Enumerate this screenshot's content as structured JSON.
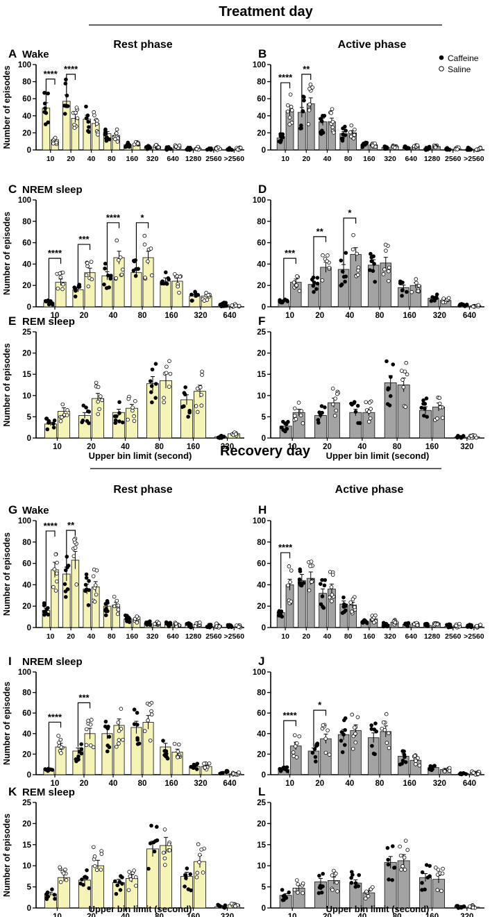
{
  "headings": {
    "treatment_day": "Treatment day",
    "recovery_day": "Recovery day",
    "rest_phase": "Rest phase",
    "active_phase": "Active phase"
  },
  "legend": {
    "caffeine": "Caffeine",
    "saline": "Saline",
    "placement": "top-right"
  },
  "colors": {
    "rest_bar": "#f6f3b6",
    "active_bar": "#a3a3a3",
    "caffeine_dot": "#000000",
    "saline_dot": "#ffffff"
  },
  "chart_data": [
    {
      "id": "A",
      "type": "bar",
      "title": "Wake",
      "day": "Treatment day",
      "phase": "Rest phase",
      "ylabel": "Number of episodes",
      "xlabel": "",
      "ylim": [
        0,
        100
      ],
      "yticks": [
        0,
        20,
        40,
        60,
        80,
        100
      ],
      "categories": [
        "10",
        "20",
        "40",
        "80",
        "160",
        "320",
        "640",
        "1280",
        "2560",
        ">2560"
      ],
      "series": [
        {
          "name": "Caffeine",
          "values": [
            49,
            57,
            36,
            19,
            6,
            3,
            2,
            1,
            1,
            0.5
          ]
        },
        {
          "name": "Saline",
          "values": [
            12,
            37,
            31,
            17,
            7,
            4,
            4,
            2,
            2,
            1
          ]
        }
      ],
      "significance": [
        {
          "category": "10",
          "label": "****"
        },
        {
          "category": "20",
          "label": "****"
        }
      ]
    },
    {
      "id": "B",
      "type": "bar",
      "title": "",
      "day": "Treatment day",
      "phase": "Active phase",
      "ylabel": "",
      "xlabel": "",
      "ylim": [
        0,
        100
      ],
      "yticks": [
        0,
        20,
        40,
        60,
        80,
        100
      ],
      "categories": [
        "10",
        "20",
        "40",
        "80",
        "160",
        "320",
        "640",
        "1280",
        "2560",
        ">2560"
      ],
      "series": [
        {
          "name": "Caffeine",
          "values": [
            14,
            44,
            33,
            19,
            6,
            3,
            3,
            2,
            1,
            1
          ]
        },
        {
          "name": "Saline",
          "values": [
            46,
            54,
            33,
            20,
            6,
            4,
            4,
            4,
            1,
            1
          ]
        }
      ],
      "significance": [
        {
          "category": "10",
          "label": "****"
        },
        {
          "category": "20",
          "label": "**"
        }
      ]
    },
    {
      "id": "C",
      "type": "bar",
      "title": "NREM sleep",
      "day": "Treatment day",
      "phase": "Rest phase",
      "ylabel": "Number of episodes",
      "xlabel": "",
      "ylim": [
        0,
        100
      ],
      "yticks": [
        0,
        20,
        40,
        60,
        80,
        100
      ],
      "categories": [
        "10",
        "20",
        "40",
        "80",
        "160",
        "320",
        "640"
      ],
      "series": [
        {
          "name": "Caffeine",
          "values": [
            4,
            16,
            29,
            32,
            24,
            10,
            2
          ]
        },
        {
          "name": "Saline",
          "values": [
            23,
            32,
            46,
            46,
            24,
            10,
            1
          ]
        }
      ],
      "significance": [
        {
          "category": "10",
          "label": "****"
        },
        {
          "category": "20",
          "label": "***"
        },
        {
          "category": "40",
          "label": "****"
        },
        {
          "category": "80",
          "label": "*"
        }
      ]
    },
    {
      "id": "D",
      "type": "bar",
      "title": "",
      "day": "Treatment day",
      "phase": "Active phase",
      "ylabel": "",
      "xlabel": "",
      "ylim": [
        0,
        100
      ],
      "yticks": [
        0,
        20,
        40,
        60,
        80,
        100
      ],
      "categories": [
        "10",
        "20",
        "40",
        "80",
        "160",
        "320",
        "640"
      ],
      "series": [
        {
          "name": "Caffeine",
          "values": [
            5,
            21,
            35,
            39,
            18,
            8,
            1
          ]
        },
        {
          "name": "Saline",
          "values": [
            23,
            37,
            49,
            41,
            20,
            6,
            1
          ]
        }
      ],
      "significance": [
        {
          "category": "10",
          "label": "***"
        },
        {
          "category": "20",
          "label": "**"
        },
        {
          "category": "40",
          "label": "*"
        }
      ]
    },
    {
      "id": "E",
      "type": "bar",
      "title": "REM sleep",
      "day": "Treatment day",
      "phase": "Rest phase",
      "ylabel": "Number of episodes",
      "xlabel": "Upper bin limit (second)",
      "ylim": [
        0,
        25
      ],
      "yticks": [
        0,
        5,
        10,
        15,
        20,
        25
      ],
      "categories": [
        "10",
        "20",
        "40",
        "80",
        "160",
        "320"
      ],
      "series": [
        {
          "name": "Caffeine",
          "values": [
            3.3,
            5.3,
            6,
            12.8,
            9,
            0.3
          ]
        },
        {
          "name": "Saline",
          "values": [
            6.3,
            9.3,
            7,
            13.5,
            11,
            1
          ]
        }
      ],
      "significance": []
    },
    {
      "id": "F",
      "type": "bar",
      "title": "",
      "day": "Treatment day",
      "phase": "Active phase",
      "ylabel": "",
      "xlabel": "Upper bin limit (second)",
      "ylim": [
        0,
        25
      ],
      "yticks": [
        0,
        5,
        10,
        15,
        20,
        25
      ],
      "categories": [
        "10",
        "20",
        "40",
        "80",
        "160",
        "320"
      ],
      "series": [
        {
          "name": "Caffeine",
          "values": [
            2.8,
            5.3,
            6,
            13,
            6.5,
            0.2
          ]
        },
        {
          "name": "Saline",
          "values": [
            6,
            8.3,
            6,
            12.5,
            7.3,
            0.3
          ]
        }
      ],
      "significance": []
    },
    {
      "id": "G",
      "type": "bar",
      "title": "Wake",
      "day": "Recovery day",
      "phase": "Rest phase",
      "ylabel": "Number of episodes",
      "xlabel": "",
      "ylim": [
        0,
        100
      ],
      "yticks": [
        0,
        20,
        40,
        60,
        80,
        100
      ],
      "categories": [
        "10",
        "20",
        "40",
        "80",
        "160",
        "320",
        "640",
        "1280",
        "2560",
        ">2560"
      ],
      "series": [
        {
          "name": "Caffeine",
          "values": [
            16,
            50,
            36,
            20,
            8,
            4,
            3,
            2,
            1,
            0.5
          ]
        },
        {
          "name": "Saline",
          "values": [
            54,
            63,
            38,
            21,
            8,
            4,
            3,
            3,
            2,
            1
          ]
        }
      ],
      "significance": [
        {
          "category": "10",
          "label": "****"
        },
        {
          "category": "20",
          "label": "**"
        }
      ]
    },
    {
      "id": "H",
      "type": "bar",
      "title": "",
      "day": "Recovery day",
      "phase": "Active phase",
      "ylabel": "",
      "xlabel": "",
      "ylim": [
        0,
        100
      ],
      "yticks": [
        0,
        20,
        40,
        60,
        80,
        100
      ],
      "categories": [
        "10",
        "20",
        "40",
        "80",
        "160",
        "320",
        "640",
        "1280",
        "2560",
        ">2560"
      ],
      "series": [
        {
          "name": "Caffeine",
          "values": [
            14,
            44,
            32,
            22,
            6,
            3,
            3,
            2,
            1,
            1
          ]
        },
        {
          "name": "Saline",
          "values": [
            40,
            46,
            36,
            21,
            8,
            5,
            4,
            4,
            2,
            1
          ]
        }
      ],
      "significance": [
        {
          "category": "10",
          "label": "****"
        }
      ]
    },
    {
      "id": "I",
      "type": "bar",
      "title": "NREM sleep",
      "day": "Recovery day",
      "phase": "Rest phase",
      "ylabel": "Number of episodes",
      "xlabel": "",
      "ylim": [
        0,
        100
      ],
      "yticks": [
        0,
        20,
        40,
        60,
        80,
        100
      ],
      "categories": [
        "10",
        "20",
        "40",
        "80",
        "160",
        "320",
        "640"
      ],
      "series": [
        {
          "name": "Caffeine",
          "values": [
            4,
            23,
            40,
            46,
            27,
            8,
            2
          ]
        },
        {
          "name": "Saline",
          "values": [
            27,
            40,
            48,
            51,
            22,
            8,
            1
          ]
        }
      ],
      "significance": [
        {
          "category": "10",
          "label": "****"
        },
        {
          "category": "20",
          "label": "***"
        }
      ]
    },
    {
      "id": "J",
      "type": "bar",
      "title": "",
      "day": "Recovery day",
      "phase": "Active phase",
      "ylabel": "",
      "xlabel": "",
      "ylim": [
        0,
        100
      ],
      "yticks": [
        0,
        20,
        40,
        60,
        80,
        100
      ],
      "categories": [
        "10",
        "20",
        "40",
        "80",
        "160",
        "320",
        "640"
      ],
      "series": [
        {
          "name": "Caffeine",
          "values": [
            5,
            23,
            39,
            36,
            18,
            7,
            1
          ]
        },
        {
          "name": "Saline",
          "values": [
            28,
            35,
            43,
            42,
            14,
            5,
            2
          ]
        }
      ],
      "significance": [
        {
          "category": "10",
          "label": "****"
        },
        {
          "category": "20",
          "label": "*"
        }
      ]
    },
    {
      "id": "K",
      "type": "bar",
      "title": "REM sleep",
      "day": "Recovery day",
      "phase": "Rest phase",
      "ylabel": "Number of episodes",
      "xlabel": "Upper bin limit (second)",
      "ylim": [
        0,
        25
      ],
      "yticks": [
        0,
        5,
        10,
        15,
        20,
        25
      ],
      "categories": [
        "10",
        "20",
        "40",
        "80",
        "160",
        "320"
      ],
      "series": [
        {
          "name": "Caffeine",
          "values": [
            3.3,
            6.6,
            6,
            14,
            7.5,
            0.3
          ]
        },
        {
          "name": "Saline",
          "values": [
            7.2,
            10,
            7,
            14.8,
            11,
            0.8
          ]
        }
      ],
      "significance": []
    },
    {
      "id": "L",
      "type": "bar",
      "title": "",
      "day": "Recovery day",
      "phase": "Active phase",
      "ylabel": "",
      "xlabel": "Upper bin limit (second)",
      "ylim": [
        0,
        25
      ],
      "yticks": [
        0,
        5,
        10,
        15,
        20,
        25
      ],
      "categories": [
        "10",
        "20",
        "40",
        "80",
        "160",
        "320"
      ],
      "series": [
        {
          "name": "Caffeine",
          "values": [
            3,
            6.2,
            5.9,
            10.8,
            7.2,
            0.3
          ]
        },
        {
          "name": "Saline",
          "values": [
            4.7,
            6.5,
            3.6,
            11.2,
            6.8,
            0.2
          ]
        }
      ],
      "significance": []
    }
  ]
}
